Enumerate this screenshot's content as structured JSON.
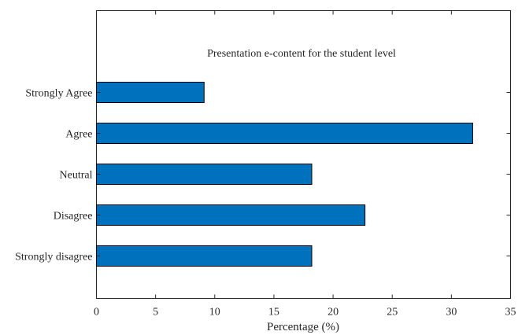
{
  "chart_data": {
    "type": "bar",
    "orientation": "horizontal",
    "title": "Presentation e-content for the student level",
    "xlabel": "Percentage (%)",
    "ylabel": "",
    "categories": [
      "Strongly Agree",
      "Agree",
      "Neutral",
      "Disagree",
      "Strongly disagree"
    ],
    "values": [
      9.1,
      31.8,
      18.2,
      22.7,
      18.2
    ],
    "xlim": [
      0,
      35
    ],
    "xticks": [
      0,
      5,
      10,
      15,
      20,
      25,
      30,
      35
    ],
    "grid": false,
    "bar_color": "#0072BD"
  }
}
